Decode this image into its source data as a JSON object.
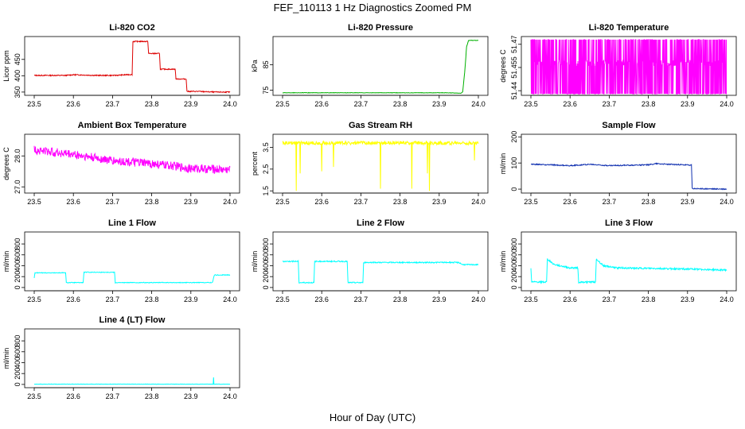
{
  "page": {
    "title": "FEF_110113  1 Hz Diagnostics Zoomed PM",
    "xlabel": "Hour of Day (UTC)"
  },
  "chart_data": [
    {
      "id": "co2",
      "type": "line",
      "title": "Li-820 CO2",
      "ylabel": "Licor ppm",
      "color": "#dd0000",
      "xlim": [
        23.5,
        24.0
      ],
      "ylim": [
        340,
        520
      ],
      "xticks": [
        "23.5",
        "23.6",
        "23.7",
        "23.8",
        "23.9",
        "24.0"
      ],
      "yticks": [
        {
          "v": 350,
          "label": "350"
        },
        {
          "v": 400,
          "label": "400"
        },
        {
          "v": 450,
          "label": "450"
        }
      ],
      "noise": 1.5,
      "series": [
        [
          23.5,
          401
        ],
        [
          23.58,
          401
        ],
        [
          23.6,
          403
        ],
        [
          23.66,
          401
        ],
        [
          23.705,
          401
        ],
        [
          23.75,
          404
        ],
        [
          23.752,
          505
        ],
        [
          23.79,
          505
        ],
        [
          23.792,
          468
        ],
        [
          23.82,
          468
        ],
        [
          23.822,
          420
        ],
        [
          23.86,
          420
        ],
        [
          23.862,
          390
        ],
        [
          23.888,
          390
        ],
        [
          23.89,
          352
        ],
        [
          23.92,
          352
        ],
        [
          23.96,
          350
        ],
        [
          24.0,
          350
        ]
      ]
    },
    {
      "id": "pressure",
      "type": "line",
      "title": "Li-820 Pressure",
      "ylabel": "kPa",
      "color": "#00b000",
      "xlim": [
        23.5,
        24.0
      ],
      "ylim": [
        73,
        96
      ],
      "xticks": [
        "23.5",
        "23.6",
        "23.7",
        "23.8",
        "23.9",
        "24.0"
      ],
      "yticks": [
        {
          "v": 75,
          "label": "75"
        },
        {
          "v": 85,
          "label": "85"
        }
      ],
      "noise": 0.08,
      "series": [
        [
          23.5,
          74
        ],
        [
          23.84,
          74
        ],
        [
          23.92,
          74
        ],
        [
          23.955,
          73.8
        ],
        [
          23.96,
          74.3
        ],
        [
          23.965,
          82
        ],
        [
          23.97,
          92
        ],
        [
          23.975,
          94.5
        ],
        [
          24.0,
          94.5
        ]
      ]
    },
    {
      "id": "licor_temp",
      "type": "line",
      "title": "Li-820 Temperature",
      "ylabel": "degrees C",
      "color": "#ff00ff",
      "xlim": [
        23.5,
        24.0
      ],
      "ylim": [
        51.437,
        51.475
      ],
      "xticks": [
        "23.5",
        "23.6",
        "23.7",
        "23.8",
        "23.9",
        "24.0"
      ],
      "yticks": [
        {
          "v": 51.44,
          "label": "51.44"
        },
        {
          "v": 51.455,
          "label": "51.455"
        },
        {
          "v": 51.47,
          "label": "51.47"
        }
      ],
      "noise": 0,
      "pattern": "toggle",
      "levels": [
        51.438,
        51.473
      ],
      "base": 51.458,
      "series": [
        [
          23.5,
          51.458
        ],
        [
          24.0,
          51.458
        ]
      ]
    },
    {
      "id": "ambient",
      "type": "line",
      "title": "Ambient Box Temperature",
      "ylabel": "degrees C",
      "color": "#ff00ff",
      "xlim": [
        23.5,
        24.0
      ],
      "ylim": [
        26.8,
        28.7
      ],
      "xticks": [
        "23.5",
        "23.6",
        "23.7",
        "23.8",
        "23.9",
        "24.0"
      ],
      "yticks": [
        {
          "v": 27.0,
          "label": "27.0"
        },
        {
          "v": 28.0,
          "label": "28.0"
        }
      ],
      "noise": 0.14,
      "series": [
        [
          23.5,
          28.2
        ],
        [
          23.6,
          28.05
        ],
        [
          23.7,
          27.85
        ],
        [
          23.8,
          27.75
        ],
        [
          23.9,
          27.6
        ],
        [
          24.0,
          27.55
        ]
      ]
    },
    {
      "id": "rh",
      "type": "line",
      "title": "Gas Stream RH",
      "ylabel": "percent",
      "color": "#ffff00",
      "xlim": [
        23.5,
        24.0
      ],
      "ylim": [
        1.4,
        4.1
      ],
      "xticks": [
        "23.5",
        "23.6",
        "23.7",
        "23.8",
        "23.9",
        "24.0"
      ],
      "yticks": [
        {
          "v": 1.5,
          "label": "1.5"
        },
        {
          "v": 2.5,
          "label": "2.5"
        },
        {
          "v": 3.5,
          "label": "3.5"
        }
      ],
      "noise": 0.08,
      "spikes": [
        [
          23.535,
          1.5
        ],
        [
          23.545,
          2.3
        ],
        [
          23.6,
          2.4
        ],
        [
          23.63,
          2.6
        ],
        [
          23.75,
          1.6
        ],
        [
          23.83,
          1.6
        ],
        [
          23.87,
          2.3
        ],
        [
          23.875,
          1.5
        ],
        [
          23.99,
          2.9
        ]
      ],
      "series": [
        [
          23.5,
          3.7
        ],
        [
          24.0,
          3.7
        ]
      ]
    },
    {
      "id": "sample_flow",
      "type": "line",
      "title": "Sample Flow",
      "ylabel": "ml/min",
      "color": "#1030b0",
      "xlim": [
        23.5,
        24.0
      ],
      "ylim": [
        -15,
        210
      ],
      "xticks": [
        "23.5",
        "23.6",
        "23.7",
        "23.8",
        "23.9",
        "24.0"
      ],
      "yticks": [
        {
          "v": 0,
          "label": "0"
        },
        {
          "v": 100,
          "label": "100"
        },
        {
          "v": 200,
          "label": "200"
        }
      ],
      "noise": 2,
      "series": [
        [
          23.5,
          95
        ],
        [
          23.55,
          93
        ],
        [
          23.6,
          90
        ],
        [
          23.65,
          95
        ],
        [
          23.7,
          90
        ],
        [
          23.8,
          93
        ],
        [
          23.82,
          98
        ],
        [
          23.85,
          95
        ],
        [
          23.91,
          92
        ],
        [
          23.912,
          2
        ],
        [
          24.0,
          0
        ]
      ]
    },
    {
      "id": "line1",
      "type": "line",
      "title": "Line 1 Flow",
      "ylabel": "ml/min",
      "color": "#00ffff",
      "xlim": [
        23.5,
        24.0
      ],
      "ylim": [
        -60,
        1020
      ],
      "xticks": [
        "23.5",
        "23.6",
        "23.7",
        "23.8",
        "23.9",
        "24.0"
      ],
      "yticks": [
        {
          "v": 0,
          "label": "0"
        },
        {
          "v": 200,
          "label": "200"
        },
        {
          "v": 400,
          "label": "400"
        },
        {
          "v": 600,
          "label": "600"
        },
        {
          "v": 800,
          "label": "800"
        }
      ],
      "noise": 6,
      "series": [
        [
          23.5,
          180
        ],
        [
          23.502,
          270
        ],
        [
          23.58,
          270
        ],
        [
          23.582,
          90
        ],
        [
          23.625,
          90
        ],
        [
          23.627,
          280
        ],
        [
          23.705,
          280
        ],
        [
          23.707,
          90
        ],
        [
          23.955,
          90
        ],
        [
          23.96,
          230
        ],
        [
          24.0,
          230
        ]
      ]
    },
    {
      "id": "line2",
      "type": "line",
      "title": "Line 2 Flow",
      "ylabel": "ml/min",
      "color": "#00ffff",
      "xlim": [
        23.5,
        24.0
      ],
      "ylim": [
        -60,
        1020
      ],
      "xticks": [
        "23.5",
        "23.6",
        "23.7",
        "23.8",
        "23.9",
        "24.0"
      ],
      "yticks": [
        {
          "v": 0,
          "label": "0"
        },
        {
          "v": 200,
          "label": "200"
        },
        {
          "v": 400,
          "label": "400"
        },
        {
          "v": 600,
          "label": "600"
        },
        {
          "v": 800,
          "label": "800"
        }
      ],
      "noise": 10,
      "series": [
        [
          23.5,
          480
        ],
        [
          23.54,
          480
        ],
        [
          23.542,
          90
        ],
        [
          23.58,
          90
        ],
        [
          23.582,
          480
        ],
        [
          23.665,
          480
        ],
        [
          23.667,
          90
        ],
        [
          23.705,
          90
        ],
        [
          23.707,
          460
        ],
        [
          23.95,
          460
        ],
        [
          23.96,
          420
        ],
        [
          24.0,
          420
        ]
      ]
    },
    {
      "id": "line3",
      "type": "line",
      "title": "Line 3 Flow",
      "ylabel": "ml/min",
      "color": "#00ffff",
      "xlim": [
        23.5,
        24.0
      ],
      "ylim": [
        -60,
        1020
      ],
      "xticks": [
        "23.5",
        "23.6",
        "23.7",
        "23.8",
        "23.9",
        "24.0"
      ],
      "yticks": [
        {
          "v": 0,
          "label": "0"
        },
        {
          "v": 200,
          "label": "200"
        },
        {
          "v": 400,
          "label": "400"
        },
        {
          "v": 600,
          "label": "600"
        },
        {
          "v": 800,
          "label": "800"
        }
      ],
      "noise": 15,
      "series": [
        [
          23.5,
          350
        ],
        [
          23.502,
          100
        ],
        [
          23.54,
          100
        ],
        [
          23.542,
          520
        ],
        [
          23.56,
          420
        ],
        [
          23.6,
          360
        ],
        [
          23.62,
          360
        ],
        [
          23.622,
          100
        ],
        [
          23.665,
          100
        ],
        [
          23.667,
          520
        ],
        [
          23.685,
          400
        ],
        [
          23.72,
          360
        ],
        [
          23.9,
          340
        ],
        [
          23.95,
          330
        ],
        [
          24.0,
          320
        ]
      ]
    },
    {
      "id": "line4",
      "type": "line",
      "title": "Line 4 (LT) Flow",
      "ylabel": "ml/min",
      "color": "#00ffff",
      "xlim": [
        23.5,
        24.0
      ],
      "ylim": [
        -60,
        1020
      ],
      "xticks": [
        "23.5",
        "23.6",
        "23.7",
        "23.8",
        "23.9",
        "24.0"
      ],
      "yticks": [
        {
          "v": 0,
          "label": "0"
        },
        {
          "v": 200,
          "label": "200"
        },
        {
          "v": 400,
          "label": "400"
        },
        {
          "v": 600,
          "label": "600"
        },
        {
          "v": 800,
          "label": "800"
        }
      ],
      "noise": 3,
      "spikes": [
        [
          23.958,
          130
        ]
      ],
      "series": [
        [
          23.5,
          5
        ],
        [
          24.0,
          5
        ]
      ]
    }
  ]
}
